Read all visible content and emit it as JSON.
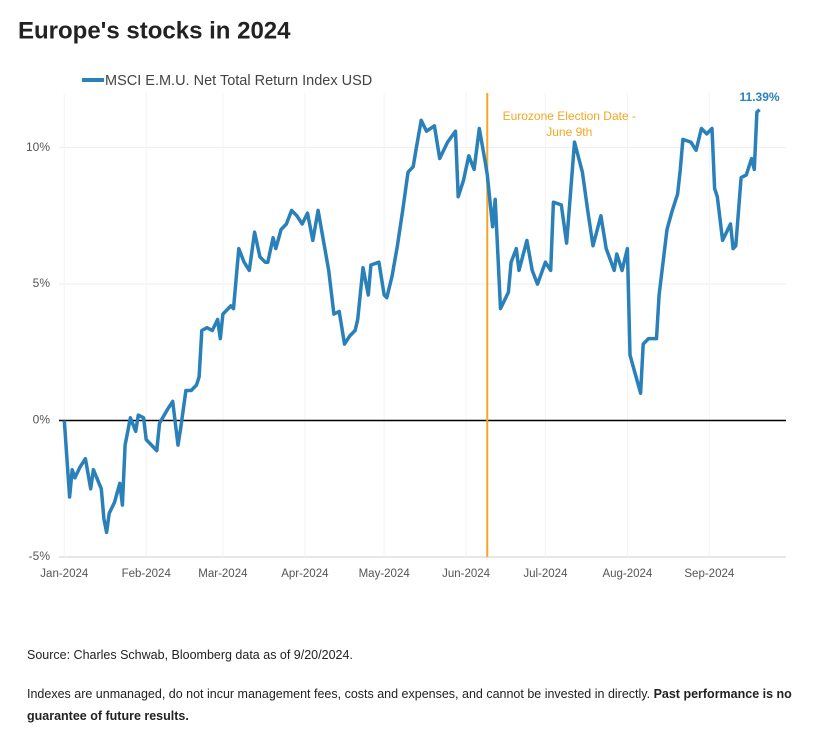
{
  "chart_data": {
    "type": "line",
    "title": "Europe's stocks in 2024",
    "x": [
      0,
      2,
      3,
      4,
      6,
      8,
      10,
      11,
      14,
      15,
      16,
      17,
      19,
      21,
      22,
      23,
      25,
      27,
      28,
      30,
      31,
      35,
      36,
      39,
      41,
      43,
      44,
      46,
      48,
      50,
      51,
      52,
      54,
      56,
      58,
      59,
      60,
      63,
      64,
      66,
      68,
      70,
      72,
      74,
      76,
      77,
      79,
      80,
      82,
      84,
      86,
      88,
      90,
      92,
      94,
      96,
      98,
      100,
      102,
      104,
      106,
      108,
      110,
      111,
      113,
      115,
      116,
      119,
      121,
      122,
      124,
      126,
      128,
      130,
      132,
      133,
      135,
      137,
      140,
      142,
      145,
      148,
      149,
      151,
      153,
      155,
      157,
      159,
      160,
      162,
      163,
      165,
      168,
      169,
      171,
      172,
      175,
      177,
      179,
      182,
      184,
      185,
      188,
      190,
      193,
      196,
      198,
      200,
      203,
      205,
      208,
      209,
      211,
      213,
      214,
      216,
      218,
      219,
      221,
      224,
      225,
      228,
      230,
      232,
      233,
      234,
      237,
      239,
      241,
      243,
      245,
      246,
      247,
      249,
      252,
      253,
      254,
      256,
      258,
      260,
      261,
      262,
      263
    ],
    "series": [
      {
        "name": "MSCI E.M.U. Net Total Return Index USD",
        "color": "#2a80b9",
        "values": [
          0,
          -2.8,
          -1.8,
          -2.1,
          -1.7,
          -1.4,
          -2.5,
          -1.8,
          -2.5,
          -3.6,
          -4.1,
          -3.4,
          -3.0,
          -2.3,
          -3.1,
          -0.9,
          0.1,
          -0.4,
          0.2,
          0.1,
          -0.7,
          -1.1,
          -0.1,
          0.4,
          0.7,
          -0.9,
          -0.3,
          1.1,
          1.1,
          1.3,
          1.6,
          3.3,
          3.4,
          3.3,
          3.7,
          3.0,
          3.9,
          4.2,
          4.1,
          6.3,
          5.8,
          5.5,
          6.9,
          6.0,
          5.8,
          5.8,
          6.7,
          6.3,
          7.0,
          7.2,
          7.7,
          7.5,
          7.2,
          7.6,
          6.6,
          7.7,
          6.6,
          5.5,
          3.9,
          4.0,
          2.8,
          3.1,
          3.3,
          3.7,
          5.6,
          4.6,
          5.7,
          5.8,
          4.6,
          4.5,
          5.3,
          6.4,
          7.7,
          9.1,
          9.3,
          9.9,
          11.0,
          10.6,
          10.8,
          9.6,
          10.2,
          10.6,
          8.2,
          8.8,
          9.7,
          9.2,
          10.7,
          9.6,
          9.0,
          7.1,
          8.1,
          4.1,
          4.7,
          5.8,
          6.3,
          5.5,
          6.6,
          5.5,
          5.0,
          5.8,
          5.5,
          8.0,
          7.9,
          6.5,
          10.2,
          9.1,
          7.7,
          6.4,
          7.5,
          6.3,
          5.5,
          6.1,
          5.5,
          6.3,
          2.4,
          1.7,
          1.0,
          2.8,
          3.0,
          3.0,
          4.6,
          7.0,
          7.7,
          8.3,
          9.2,
          10.3,
          10.2,
          9.9,
          10.7,
          10.5,
          10.7,
          8.5,
          8.2,
          6.6,
          7.2,
          6.3,
          6.4,
          8.9,
          9.0,
          9.6,
          9.2,
          11.3,
          11.39
        ],
        "value_labels": [
          null,
          null,
          null,
          null,
          null,
          null,
          null,
          null,
          null,
          null,
          null,
          null,
          null,
          null,
          null,
          null,
          null,
          null,
          null,
          null,
          null,
          null,
          null,
          null,
          null,
          null,
          null,
          null,
          null,
          null,
          null,
          null,
          null,
          null,
          null,
          null,
          null,
          null,
          null,
          null,
          null,
          null,
          null,
          null,
          null,
          null,
          null,
          null,
          null,
          null,
          null,
          null,
          null,
          null,
          null,
          null,
          null,
          null,
          null,
          null,
          null,
          null,
          null,
          null,
          null,
          null,
          null,
          null,
          null,
          null,
          null,
          null,
          null,
          null,
          null,
          null,
          null,
          null,
          null,
          null,
          null,
          null,
          null,
          null,
          null,
          null,
          null,
          null,
          null,
          null,
          null,
          null,
          null,
          null,
          null,
          null,
          null,
          null,
          null,
          null,
          null,
          null,
          null,
          null,
          null,
          null,
          null,
          null,
          null,
          null,
          null,
          null,
          null,
          null,
          null,
          null,
          null,
          null,
          null,
          null,
          null,
          null,
          null,
          null,
          null,
          null,
          null,
          null,
          null,
          null,
          null,
          null,
          null,
          null,
          null,
          null,
          null,
          null,
          null,
          null,
          null,
          null,
          "11.39%"
        ]
      }
    ],
    "xlim": [
      -2,
      273
    ],
    "xticks": [
      {
        "value": 0,
        "label": "Jan-2024"
      },
      {
        "value": 31,
        "label": "Feb-2024"
      },
      {
        "value": 60,
        "label": "Mar-2024"
      },
      {
        "value": 91,
        "label": "Apr-2024"
      },
      {
        "value": 121,
        "label": "May-2024"
      },
      {
        "value": 152,
        "label": "Jun-2024"
      },
      {
        "value": 182,
        "label": "Jul-2024"
      },
      {
        "value": 213,
        "label": "Aug-2024"
      },
      {
        "value": 244,
        "label": "Sep-2024"
      }
    ],
    "ylim": [
      -5,
      12
    ],
    "yticks": [
      {
        "value": -5,
        "label": "-5%"
      },
      {
        "value": 0,
        "label": "0%"
      },
      {
        "value": 5,
        "label": "5%"
      },
      {
        "value": 10,
        "label": "10%"
      }
    ],
    "grid": true,
    "zero_line": true,
    "legend": "top-left",
    "annotation": {
      "x": 160,
      "color": "#f5a623",
      "text": [
        "Eurozone Election Date -",
        "June 9th"
      ]
    }
  },
  "source": "Source: Charles Schwab, Bloomberg data as of 9/20/2024.",
  "note": {
    "text": "Indexes are unmanaged, do not incur management fees, costs and expenses, and cannot be invested in directly.",
    "emphasis": "Past performance is no guarantee of future results."
  }
}
